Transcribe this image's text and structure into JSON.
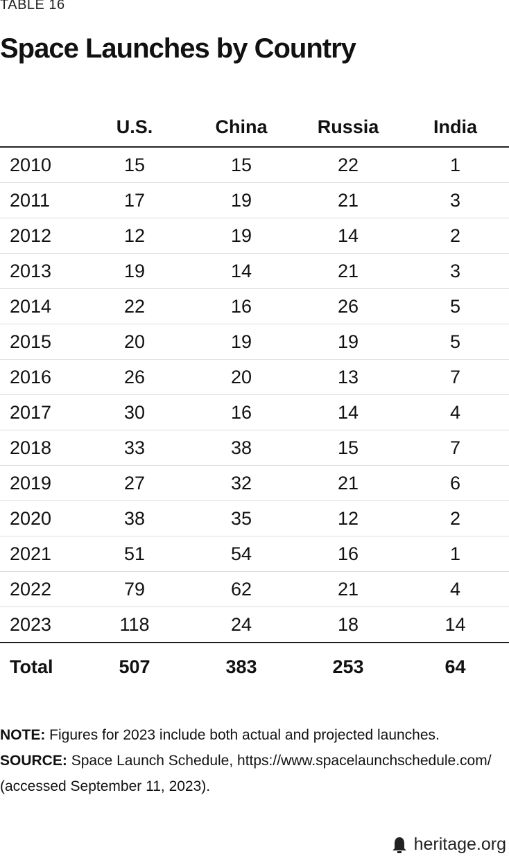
{
  "label": "TABLE 16",
  "title": "Space Launches by Country",
  "table": {
    "header": [
      "U.S.",
      "China",
      "Russia",
      "India"
    ],
    "rows": [
      [
        "2010",
        15,
        15,
        22,
        1
      ],
      [
        "2011",
        17,
        19,
        21,
        3
      ],
      [
        "2012",
        12,
        19,
        14,
        2
      ],
      [
        "2013",
        19,
        14,
        21,
        3
      ],
      [
        "2014",
        22,
        16,
        26,
        5
      ],
      [
        "2015",
        20,
        19,
        19,
        5
      ],
      [
        "2016",
        26,
        20,
        13,
        7
      ],
      [
        "2017",
        30,
        16,
        14,
        4
      ],
      [
        "2018",
        33,
        38,
        15,
        7
      ],
      [
        "2019",
        27,
        32,
        21,
        6
      ],
      [
        "2020",
        38,
        35,
        12,
        2
      ],
      [
        "2021",
        51,
        54,
        16,
        1
      ],
      [
        "2022",
        79,
        62,
        21,
        4
      ],
      [
        "2023",
        118,
        24,
        18,
        14
      ]
    ],
    "total": [
      "Total",
      507,
      383,
      253,
      64
    ]
  },
  "notes": [
    {
      "label": "NOTE:",
      "text": "Figures for 2023 include both actual and projected launches."
    },
    {
      "label": "SOURCE:",
      "text": "Space Launch Schedule, https://www.spacelaunchschedule.com/ (accessed September 11, 2023)."
    }
  ],
  "footer": "heritage.org"
}
